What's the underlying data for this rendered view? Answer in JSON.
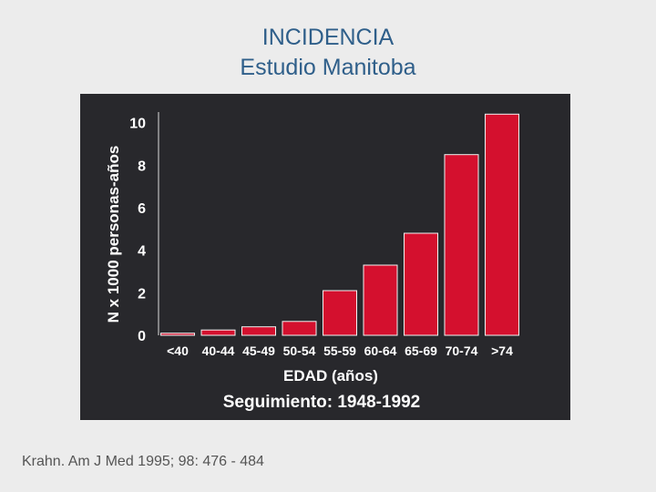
{
  "slide": {
    "title_line1": "INCIDENCIA",
    "title_line2": "Estudio Manitoba",
    "source": "Krahn. Am J Med 1995; 98: 476 - 484"
  },
  "colors": {
    "background": "#ececec",
    "title": "#2f5f8a",
    "panel": "#28282c",
    "bar": "#d4102e",
    "axis_text": "#ffffff"
  },
  "chart_data": {
    "type": "bar",
    "categories": [
      "<40",
      "40-44",
      "45-49",
      "50-54",
      "55-59",
      "60-64",
      "65-69",
      "70-74",
      ">74"
    ],
    "values": [
      0.1,
      0.25,
      0.4,
      0.65,
      2.1,
      3.3,
      4.8,
      8.5,
      10.4
    ],
    "xlabel": "EDAD (años)",
    "ylabel": "N x 1000 personas-años",
    "subtitle": "Seguimiento: 1948-1992",
    "yticks": [
      0,
      2,
      4,
      6,
      8,
      10
    ],
    "ylim": [
      0,
      10.5
    ],
    "grid": false,
    "legend": "none"
  }
}
